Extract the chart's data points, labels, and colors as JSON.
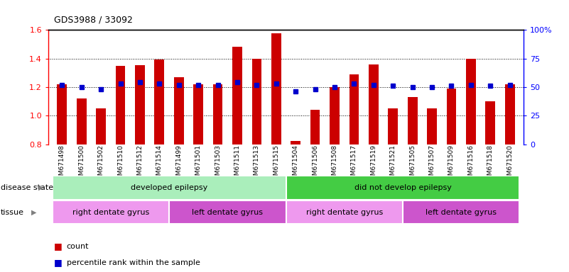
{
  "title": "GDS3988 / 33092",
  "samples": [
    "GSM671498",
    "GSM671500",
    "GSM671502",
    "GSM671510",
    "GSM671512",
    "GSM671514",
    "GSM671499",
    "GSM671501",
    "GSM671503",
    "GSM671511",
    "GSM671513",
    "GSM671515",
    "GSM671504",
    "GSM671506",
    "GSM671508",
    "GSM671517",
    "GSM671519",
    "GSM671521",
    "GSM671505",
    "GSM671507",
    "GSM671509",
    "GSM671516",
    "GSM671518",
    "GSM671520"
  ],
  "count_values": [
    1.22,
    1.12,
    1.05,
    1.35,
    1.355,
    1.395,
    1.27,
    1.22,
    1.22,
    1.48,
    1.4,
    1.575,
    0.82,
    1.04,
    1.2,
    1.29,
    1.36,
    1.05,
    1.13,
    1.05,
    1.19,
    1.4,
    1.1,
    1.22
  ],
  "percentile_values": [
    52,
    50,
    48,
    53,
    54,
    53,
    52,
    52,
    52,
    54,
    52,
    53,
    46,
    48,
    50,
    53,
    52,
    51,
    50,
    50,
    51,
    52,
    51,
    52
  ],
  "bar_color": "#cc0000",
  "dot_color": "#0000cc",
  "ylim_left": [
    0.8,
    1.6
  ],
  "ylim_right": [
    0,
    100
  ],
  "yticks_left": [
    0.8,
    1.0,
    1.2,
    1.4,
    1.6
  ],
  "yticks_right": [
    0,
    25,
    50,
    75,
    100
  ],
  "ytick_labels_right": [
    "0",
    "25",
    "50",
    "75",
    "100%"
  ],
  "hline_values": [
    1.0,
    1.2,
    1.4
  ],
  "disease_state_groups": [
    {
      "label": "developed epilepsy",
      "start": 0,
      "end": 12,
      "color": "#aaeebb"
    },
    {
      "label": "did not develop epilepsy",
      "start": 12,
      "end": 24,
      "color": "#44cc44"
    }
  ],
  "tissue_groups": [
    {
      "label": "right dentate gyrus",
      "start": 0,
      "end": 6,
      "color": "#ee99ee"
    },
    {
      "label": "left dentate gyrus",
      "start": 6,
      "end": 12,
      "color": "#cc55cc"
    },
    {
      "label": "right dentate gyrus",
      "start": 12,
      "end": 18,
      "color": "#ee99ee"
    },
    {
      "label": "left dentate gyrus",
      "start": 18,
      "end": 24,
      "color": "#cc55cc"
    }
  ],
  "bar_width": 0.5,
  "row_label_disease": "disease state",
  "row_label_tissue": "tissue",
  "background_color": "#ffffff",
  "n_samples": 24,
  "n_split": 12
}
